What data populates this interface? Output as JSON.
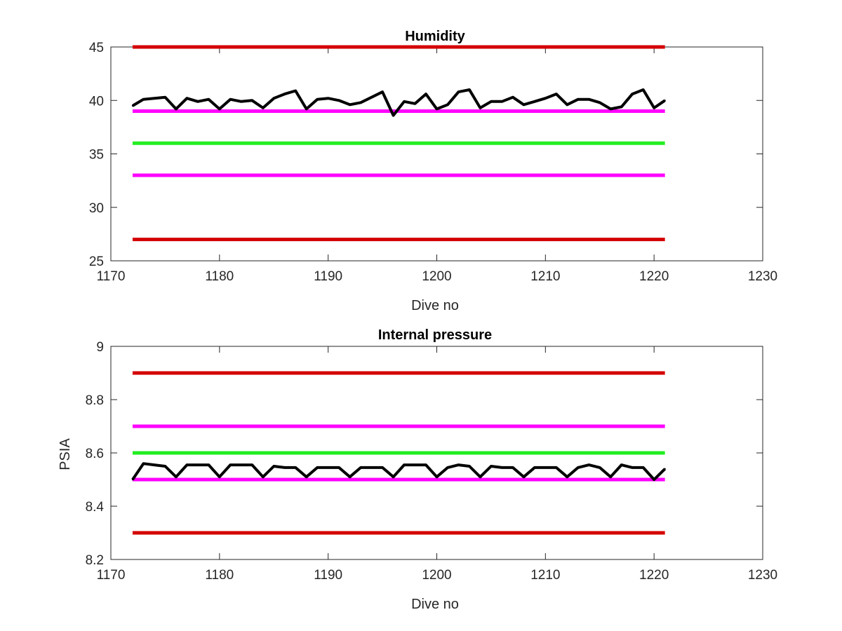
{
  "chart_data": [
    {
      "type": "line",
      "title": "Humidity",
      "xlabel": "Dive no",
      "ylabel": "",
      "xlim": [
        1170,
        1230
      ],
      "ylim": [
        25,
        45
      ],
      "xticks": [
        1170,
        1180,
        1190,
        1200,
        1210,
        1220,
        1230
      ],
      "yticks": [
        25,
        30,
        35,
        40,
        45
      ],
      "xtick_labels": [
        "1170",
        "1180",
        "1190",
        "1200",
        "1210",
        "1220",
        "1230"
      ],
      "ytick_labels": [
        "25",
        "30",
        "35",
        "40",
        "45"
      ],
      "grid": false,
      "reference_lines": [
        {
          "y": 45,
          "x": [
            1172,
            1221
          ],
          "color": "#d40000"
        },
        {
          "y": 39,
          "x": [
            1172,
            1221
          ],
          "color": "#ff00ff"
        },
        {
          "y": 36,
          "x": [
            1172,
            1221
          ],
          "color": "#22ee22"
        },
        {
          "y": 33,
          "x": [
            1172,
            1221
          ],
          "color": "#ff00ff"
        },
        {
          "y": 27,
          "x": [
            1172,
            1221
          ],
          "color": "#d40000"
        }
      ],
      "series": [
        {
          "color": "#000000",
          "x": [
            1172,
            1173,
            1174,
            1175,
            1176,
            1177,
            1178,
            1179,
            1180,
            1181,
            1182,
            1183,
            1184,
            1185,
            1186,
            1187,
            1188,
            1189,
            1190,
            1191,
            1192,
            1193,
            1194,
            1195,
            1196,
            1197,
            1198,
            1199,
            1200,
            1201,
            1202,
            1203,
            1204,
            1205,
            1206,
            1207,
            1208,
            1209,
            1210,
            1211,
            1212,
            1213,
            1214,
            1215,
            1216,
            1217,
            1218,
            1219,
            1220,
            1221
          ],
          "values": [
            39.5,
            40.1,
            40.2,
            40.3,
            39.2,
            40.2,
            39.9,
            40.1,
            39.2,
            40.1,
            39.9,
            40.0,
            39.3,
            40.2,
            40.6,
            40.9,
            39.2,
            40.1,
            40.2,
            40.0,
            39.6,
            39.8,
            40.3,
            40.8,
            38.6,
            39.9,
            39.7,
            40.6,
            39.2,
            39.6,
            40.8,
            41.0,
            39.3,
            39.9,
            39.9,
            40.3,
            39.6,
            39.9,
            40.2,
            40.6,
            39.6,
            40.1,
            40.1,
            39.8,
            39.2,
            39.4,
            40.6,
            41.0,
            39.3,
            40.0
          ]
        }
      ]
    },
    {
      "type": "line",
      "title": "Internal pressure",
      "xlabel": "Dive no",
      "ylabel": "PSIA",
      "xlim": [
        1170,
        1230
      ],
      "ylim": [
        8.2,
        9.0
      ],
      "xticks": [
        1170,
        1180,
        1190,
        1200,
        1210,
        1220,
        1230
      ],
      "yticks": [
        8.2,
        8.4,
        8.6,
        8.8,
        9.0
      ],
      "xtick_labels": [
        "1170",
        "1180",
        "1190",
        "1200",
        "1210",
        "1220",
        "1230"
      ],
      "ytick_labels": [
        "8.2",
        "8.4",
        "8.6",
        "8.8",
        "9"
      ],
      "grid": false,
      "reference_lines": [
        {
          "y": 8.9,
          "x": [
            1172,
            1221
          ],
          "color": "#d40000"
        },
        {
          "y": 8.7,
          "x": [
            1172,
            1221
          ],
          "color": "#ff00ff"
        },
        {
          "y": 8.6,
          "x": [
            1172,
            1221
          ],
          "color": "#22ee22"
        },
        {
          "y": 8.5,
          "x": [
            1172,
            1221
          ],
          "color": "#ff00ff"
        },
        {
          "y": 8.3,
          "x": [
            1172,
            1221
          ],
          "color": "#d40000"
        }
      ],
      "series": [
        {
          "color": "#000000",
          "x": [
            1172,
            1173,
            1174,
            1175,
            1176,
            1177,
            1178,
            1179,
            1180,
            1181,
            1182,
            1183,
            1184,
            1185,
            1186,
            1187,
            1188,
            1189,
            1190,
            1191,
            1192,
            1193,
            1194,
            1195,
            1196,
            1197,
            1198,
            1199,
            1200,
            1201,
            1202,
            1203,
            1204,
            1205,
            1206,
            1207,
            1208,
            1209,
            1210,
            1211,
            1212,
            1213,
            1214,
            1215,
            1216,
            1217,
            1218,
            1219,
            1220,
            1221
          ],
          "values": [
            8.5,
            8.56,
            8.555,
            8.55,
            8.51,
            8.555,
            8.555,
            8.555,
            8.51,
            8.555,
            8.555,
            8.555,
            8.51,
            8.55,
            8.545,
            8.545,
            8.51,
            8.545,
            8.545,
            8.545,
            8.51,
            8.545,
            8.545,
            8.545,
            8.51,
            8.555,
            8.555,
            8.555,
            8.51,
            8.545,
            8.555,
            8.55,
            8.51,
            8.55,
            8.545,
            8.545,
            8.51,
            8.545,
            8.545,
            8.545,
            8.51,
            8.545,
            8.555,
            8.545,
            8.51,
            8.555,
            8.545,
            8.545,
            8.5,
            8.54
          ]
        }
      ]
    }
  ]
}
